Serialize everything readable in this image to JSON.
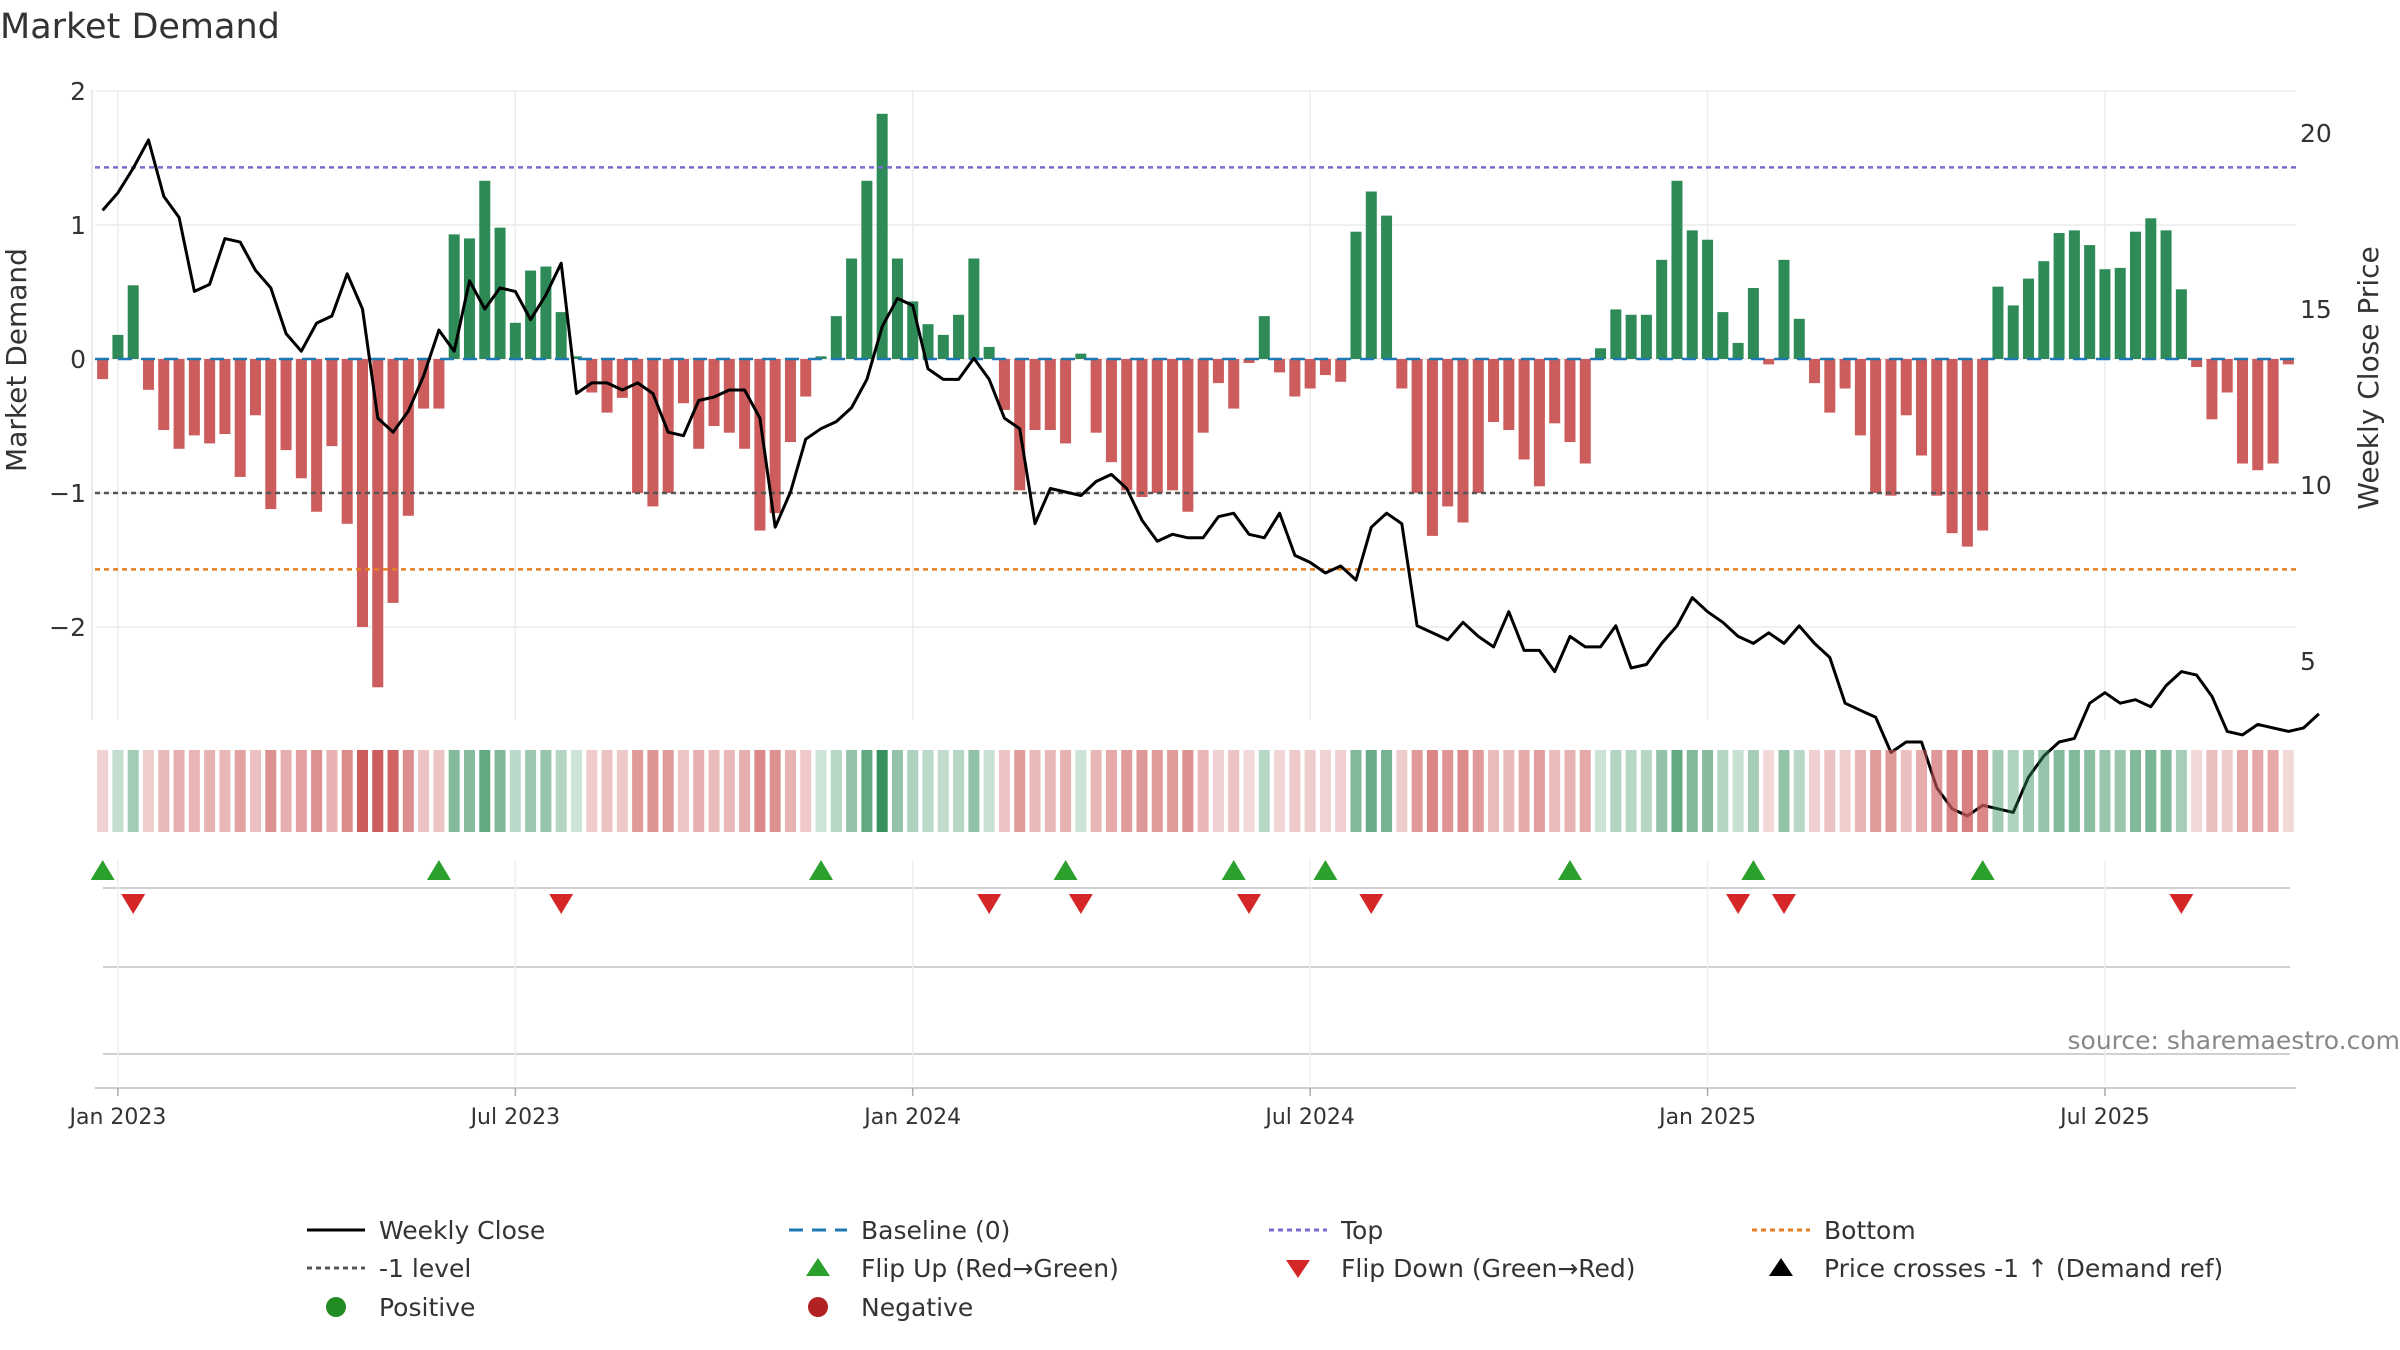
{
  "chart_data": {
    "type": "bar",
    "title": "Market Demand",
    "ylabel": "Market Demand",
    "ylabel_right": "Weekly Close Price",
    "ylim": [
      -2.7,
      2.0
    ],
    "ylim_right": [
      4.0,
      21.5
    ],
    "yticks": [
      2,
      1,
      0,
      -1,
      -2
    ],
    "ytick_labels": [
      "2",
      "1",
      "0",
      "−1",
      "−2"
    ],
    "yticks_right": [
      20,
      15,
      10,
      5
    ],
    "ytick_labels_right": [
      "20",
      "15",
      "10",
      "5"
    ],
    "x_ticks": [
      "Jan 2023",
      "Jul 2023",
      "Jan 2024",
      "Jul 2024",
      "Jan 2025",
      "Jul 2025"
    ],
    "x_tick_weeks": [
      1,
      27,
      53,
      79,
      105,
      131
    ],
    "reference_lines": {
      "top": 1.43,
      "minus_one": -1.0,
      "bottom": -1.57
    },
    "source": "source: sharemaestro.com",
    "colors": {
      "positive": "#2e8b57",
      "negative": "#cd5c5c",
      "price": "#000000",
      "baseline": "#1f77b4",
      "top": "#7a6bd0",
      "minus_one": "#555555",
      "bottom": "#e67e22",
      "flip_up": "#2ca02c",
      "flip_down": "#d62728"
    },
    "demand": [
      -0.15,
      0.18,
      0.55,
      -0.23,
      -0.53,
      -0.67,
      -0.57,
      -0.63,
      -0.56,
      -0.88,
      -0.42,
      -1.12,
      -0.68,
      -0.89,
      -1.14,
      -0.65,
      -1.23,
      -2.0,
      -2.45,
      -1.82,
      -1.17,
      -0.37,
      -0.37,
      0.93,
      0.9,
      1.33,
      0.98,
      0.27,
      0.66,
      0.69,
      0.35,
      0.02,
      -0.25,
      -0.4,
      -0.29,
      -1.0,
      -1.1,
      -1.0,
      -0.33,
      -0.67,
      -0.5,
      -0.55,
      -0.67,
      -1.28,
      -1.15,
      -0.62,
      -0.28,
      0.02,
      0.32,
      0.75,
      1.33,
      1.83,
      0.75,
      0.43,
      0.26,
      0.18,
      0.33,
      0.75,
      0.09,
      -0.38,
      -0.98,
      -0.53,
      -0.53,
      -0.63,
      0.04,
      -0.55,
      -0.77,
      -0.98,
      -1.03,
      -1.0,
      -0.98,
      -1.14,
      -0.55,
      -0.18,
      -0.37,
      -0.03,
      0.32,
      -0.1,
      -0.28,
      -0.22,
      -0.12,
      -0.17,
      0.95,
      1.25,
      1.07,
      -0.22,
      -1.0,
      -1.32,
      -1.1,
      -1.22,
      -1.0,
      -0.47,
      -0.53,
      -0.75,
      -0.95,
      -0.48,
      -0.62,
      -0.78,
      0.08,
      0.37,
      0.33,
      0.33,
      0.74,
      1.33,
      0.96,
      0.89,
      0.35,
      0.12,
      0.53,
      -0.04,
      0.74,
      0.3,
      -0.18,
      -0.4,
      -0.22,
      -0.57,
      -1.0,
      -1.02,
      -0.42,
      -0.72,
      -1.02,
      -1.3,
      -1.4,
      -1.28,
      0.54,
      0.4,
      0.6,
      0.73,
      0.94,
      0.96,
      0.85,
      0.67,
      0.68,
      0.95,
      1.05,
      0.96,
      0.52,
      -0.06,
      -0.45,
      -0.25,
      -0.78,
      -0.83,
      -0.78,
      -0.04
    ],
    "price": [
      17.8,
      18.3,
      19.0,
      19.8,
      18.2,
      17.6,
      15.5,
      15.7,
      17.0,
      16.9,
      16.1,
      15.6,
      14.3,
      13.8,
      14.6,
      14.8,
      16.0,
      15.0,
      11.9,
      11.5,
      12.1,
      13.1,
      14.4,
      13.8,
      15.8,
      15.0,
      15.6,
      15.5,
      14.7,
      15.4,
      16.3,
      12.6,
      12.9,
      12.9,
      12.7,
      12.9,
      12.6,
      11.5,
      11.4,
      12.4,
      12.5,
      12.7,
      12.7,
      11.9,
      8.8,
      9.8,
      11.3,
      11.6,
      11.8,
      12.2,
      13.0,
      14.5,
      15.3,
      15.1,
      13.3,
      13.0,
      13.0,
      13.6,
      13.0,
      11.9,
      11.6,
      8.9,
      9.9,
      9.8,
      9.7,
      10.1,
      10.3,
      9.9,
      9.0,
      8.4,
      8.6,
      8.5,
      8.5,
      9.1,
      9.2,
      8.6,
      8.5,
      9.2,
      8.0,
      7.8,
      7.5,
      7.7,
      7.3,
      8.8,
      9.2,
      8.9,
      6.0,
      5.8,
      5.6,
      6.1,
      5.7,
      5.4,
      6.4,
      5.3,
      5.3,
      4.7,
      5.7,
      5.4,
      5.4,
      6.0,
      4.8,
      4.9,
      5.5,
      6.0,
      6.8,
      6.4,
      6.1,
      5.7,
      5.5,
      5.8,
      5.5,
      6.0,
      5.5,
      5.1,
      3.8,
      3.6,
      3.4,
      2.4,
      2.7,
      2.7,
      1.4,
      0.8,
      0.6,
      0.9,
      0.8,
      0.7,
      1.7,
      2.3,
      2.7,
      2.8,
      3.8,
      4.1,
      3.8,
      3.9,
      3.7,
      4.3,
      4.7,
      4.6,
      4.0,
      3.0,
      2.9,
      3.2,
      3.1,
      3.0,
      3.1,
      3.5
    ],
    "flip_up_weeks": [
      0,
      22,
      47,
      63,
      74,
      80,
      96,
      108,
      123
    ],
    "flip_down_weeks": [
      2,
      30,
      58,
      64,
      75,
      83,
      107,
      110,
      136
    ],
    "legend": [
      {
        "label": "Weekly Close",
        "marker": "line",
        "color": "#000000"
      },
      {
        "label": "Baseline (0)",
        "marker": "dash",
        "color": "#1f77b4"
      },
      {
        "label": "Top",
        "marker": "dot",
        "color": "#7a6bd0"
      },
      {
        "label": "Bottom",
        "marker": "dot",
        "color": "#e67e22"
      },
      {
        "label": "-1 level",
        "marker": "dot",
        "color": "#555555"
      },
      {
        "label": "Flip Up (Red→Green)",
        "marker": "tri-up",
        "color": "#2ca02c"
      },
      {
        "label": "Flip Down (Green→Red)",
        "marker": "tri-down",
        "color": "#d62728"
      },
      {
        "label": "Price crosses -1 ↑ (Demand ref)",
        "marker": "tri-up",
        "color": "#000000"
      },
      {
        "label": "Positive",
        "marker": "circle",
        "color": "#228b22"
      },
      {
        "label": "Negative",
        "marker": "circle",
        "color": "#b22222"
      }
    ]
  }
}
